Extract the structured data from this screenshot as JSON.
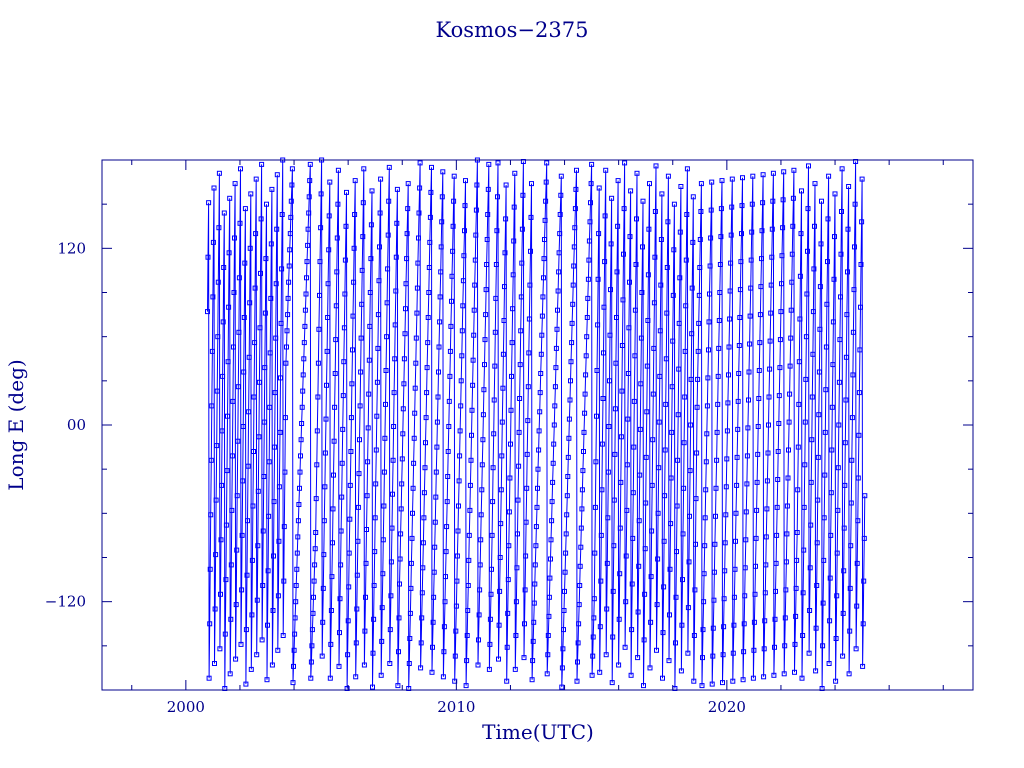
{
  "chart_data": {
    "type": "scatter",
    "title": "Kosmos−2375",
    "xlabel": "Time(UTC)",
    "ylabel": "Long E (deg)",
    "xlim": [
      1996.9,
      2029.1
    ],
    "ylim": [
      -180,
      180
    ],
    "x_ticks": [
      2000,
      2010,
      2020
    ],
    "x_tick_labels": [
      "2000",
      "2010",
      "2020"
    ],
    "y_ticks": [
      -120,
      0,
      120
    ],
    "y_tick_labels": [
      "−120",
      "00",
      "120"
    ],
    "data_span": [
      2000.8,
      2025.1
    ],
    "sample_step_years": 0.02,
    "drift_segments": [
      {
        "start": 2000.8,
        "end": 2003.7,
        "rate_deg_per_sample": 37
      },
      {
        "start": 2003.7,
        "end": 2004.8,
        "rate_deg_per_sample": 11
      },
      {
        "start": 2004.8,
        "end": 2007.9,
        "rate_deg_per_sample": 23
      },
      {
        "start": 2007.9,
        "end": 2011.3,
        "rate_deg_per_sample": 17
      },
      {
        "start": 2011.3,
        "end": 2012.8,
        "rate_deg_per_sample": 23
      },
      {
        "start": 2012.8,
        "end": 2015.1,
        "rate_deg_per_sample": 13
      },
      {
        "start": 2015.1,
        "end": 2018.9,
        "rate_deg_per_sample": 31
      },
      {
        "start": 2018.9,
        "end": 2022.6,
        "rate_deg_per_sample": 19
      },
      {
        "start": 2022.6,
        "end": 2025.1,
        "rate_deg_per_sample": 29
      }
    ],
    "grid": false,
    "legend": "none",
    "colors": {
      "series": "#0000ff",
      "axes": "#00008b"
    }
  }
}
